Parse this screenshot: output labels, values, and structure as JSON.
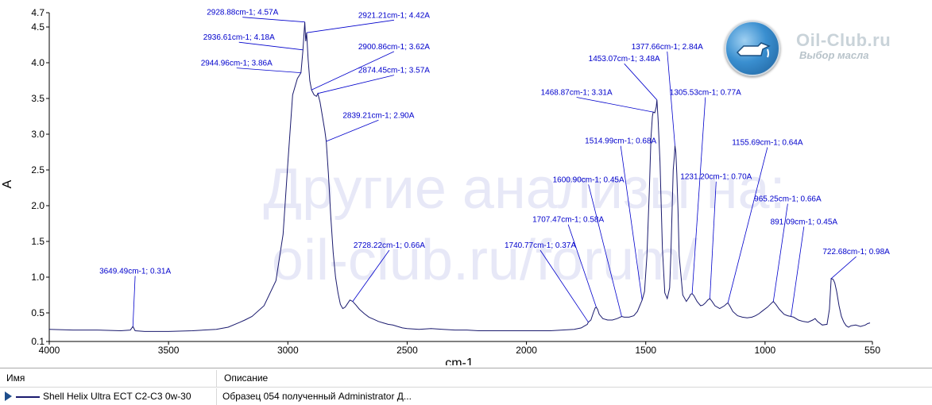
{
  "watermark": {
    "line1": "Другие анализы на:",
    "line2": "oil-club.ru/forum/"
  },
  "logo": {
    "name": "Oil-Club.ru",
    "subtitle": "Выбор масла",
    "icon": "oil-can-icon"
  },
  "table": {
    "headers": {
      "name": "Имя",
      "description": "Описание"
    },
    "rows": [
      {
        "name": "Shell Helix Ultra ECT C2-C3 0w-30",
        "description": "Образец 054 полученный Administrator Д...",
        "icon": "arrow-right-icon"
      }
    ]
  },
  "colors": {
    "spectrum": "#1a1a6e",
    "peak_label": "#0000cc",
    "watermark": "#e7e8f7",
    "axis": "#000000"
  },
  "chart_data": {
    "type": "line",
    "xlabel": "cm-1",
    "ylabel": "A",
    "xlim": [
      4000,
      550
    ],
    "x_reversed": true,
    "ylim": [
      0.1,
      4.7
    ],
    "x_ticks": [
      4000,
      3500,
      3000,
      2500,
      2000,
      1500,
      1000,
      550
    ],
    "y_ticks": [
      0.1,
      0.5,
      1.0,
      1.5,
      2.0,
      2.5,
      3.0,
      3.5,
      4.0,
      4.5,
      4.7
    ],
    "y_tick_labels": [
      "0.1",
      "0.5",
      "1.0",
      "1.5",
      "2.0",
      "2.5",
      "3.0",
      "3.5",
      "4.0",
      "4.5",
      "4.7"
    ],
    "grid": false,
    "series": [
      {
        "name": "Shell Helix Ultra ECT C2-C3 0w-30",
        "x": [
          4000,
          3900,
          3800,
          3700,
          3660,
          3649.49,
          3640,
          3600,
          3500,
          3400,
          3300,
          3250,
          3200,
          3180,
          3150,
          3100,
          3050,
          3020,
          3000,
          2980,
          2960,
          2944.96,
          2936.61,
          2928.88,
          2925,
          2921.21,
          2915,
          2908,
          2900.86,
          2890,
          2880,
          2874.45,
          2865,
          2855,
          2845,
          2839.21,
          2830,
          2820,
          2810,
          2800,
          2790,
          2780,
          2770,
          2760,
          2750,
          2740,
          2728.22,
          2715,
          2700,
          2680,
          2660,
          2640,
          2620,
          2600,
          2580,
          2560,
          2540,
          2520,
          2500,
          2450,
          2400,
          2350,
          2300,
          2250,
          2200,
          2150,
          2100,
          2050,
          2000,
          1950,
          1900,
          1850,
          1800,
          1770,
          1760,
          1750,
          1745,
          1740.77,
          1730,
          1720,
          1712,
          1707.47,
          1702,
          1695,
          1680,
          1660,
          1640,
          1620,
          1600.9,
          1590,
          1570,
          1550,
          1535,
          1525,
          1514.99,
          1505,
          1495,
          1485,
          1478,
          1472,
          1468.87,
          1462,
          1456,
          1453.07,
          1448,
          1440,
          1430,
          1420,
          1410,
          1400,
          1395,
          1390,
          1385,
          1380,
          1377.66,
          1374,
          1370,
          1365,
          1360,
          1345,
          1330,
          1318,
          1312,
          1305.53,
          1298,
          1285,
          1270,
          1260,
          1250,
          1240,
          1231.2,
          1222,
          1210,
          1190,
          1170,
          1160,
          1155.69,
          1148,
          1135,
          1115,
          1095,
          1075,
          1055,
          1040,
          1025,
          1010,
          990,
          975,
          965.25,
          955,
          940,
          920,
          905,
          891.09,
          880,
          860,
          840,
          820,
          800,
          790,
          780,
          760,
          740,
          730,
          722.68,
          715,
          708,
          700,
          690,
          680,
          670,
          660,
          650,
          640,
          620,
          600,
          580,
          570,
          560
        ],
        "y": [
          0.27,
          0.26,
          0.26,
          0.25,
          0.26,
          0.31,
          0.25,
          0.24,
          0.24,
          0.25,
          0.27,
          0.3,
          0.37,
          0.4,
          0.45,
          0.6,
          0.95,
          1.6,
          2.6,
          3.55,
          3.78,
          3.86,
          4.18,
          4.57,
          4.3,
          4.42,
          4.05,
          3.75,
          3.62,
          3.55,
          3.53,
          3.57,
          3.45,
          3.25,
          3.05,
          2.9,
          2.45,
          1.85,
          1.35,
          1.0,
          0.78,
          0.62,
          0.56,
          0.58,
          0.63,
          0.68,
          0.66,
          0.61,
          0.55,
          0.49,
          0.44,
          0.41,
          0.38,
          0.36,
          0.34,
          0.33,
          0.31,
          0.29,
          0.28,
          0.27,
          0.28,
          0.27,
          0.26,
          0.26,
          0.25,
          0.25,
          0.25,
          0.25,
          0.25,
          0.25,
          0.25,
          0.26,
          0.27,
          0.29,
          0.31,
          0.33,
          0.34,
          0.37,
          0.4,
          0.5,
          0.57,
          0.58,
          0.55,
          0.48,
          0.42,
          0.4,
          0.4,
          0.42,
          0.45,
          0.44,
          0.44,
          0.46,
          0.52,
          0.6,
          0.68,
          0.8,
          1.3,
          2.2,
          2.95,
          3.25,
          3.31,
          3.3,
          3.38,
          3.48,
          3.2,
          2.6,
          1.4,
          0.78,
          0.7,
          0.85,
          1.3,
          1.9,
          2.5,
          2.7,
          2.84,
          2.75,
          2.45,
          1.95,
          1.3,
          0.75,
          0.66,
          0.72,
          0.76,
          0.77,
          0.74,
          0.66,
          0.6,
          0.61,
          0.64,
          0.68,
          0.7,
          0.66,
          0.6,
          0.56,
          0.6,
          0.63,
          0.64,
          0.6,
          0.52,
          0.46,
          0.44,
          0.43,
          0.44,
          0.46,
          0.49,
          0.53,
          0.58,
          0.63,
          0.66,
          0.62,
          0.55,
          0.48,
          0.46,
          0.45,
          0.44,
          0.4,
          0.38,
          0.37,
          0.4,
          0.42,
          0.38,
          0.33,
          0.34,
          0.55,
          0.98,
          0.97,
          0.92,
          0.8,
          0.6,
          0.45,
          0.37,
          0.32,
          0.3,
          0.32,
          0.33,
          0.31,
          0.33,
          0.35,
          0.36
        ]
      }
    ],
    "annotations": [
      {
        "text": "2928.88cm-1; 4.57A",
        "x": 2928.88,
        "y": 4.57,
        "label_x": 3190,
        "label_y": 4.67
      },
      {
        "text": "2921.21cm-1; 4.42A",
        "x": 2921.21,
        "y": 4.42,
        "label_x": 2555,
        "label_y": 4.63
      },
      {
        "text": "2936.61cm-1; 4.18A",
        "x": 2936.61,
        "y": 4.18,
        "label_x": 3205,
        "label_y": 4.32
      },
      {
        "text": "2944.96cm-1; 3.86A",
        "x": 2944.96,
        "y": 3.86,
        "label_x": 3215,
        "label_y": 3.96
      },
      {
        "text": "2900.86cm-1; 3.62A",
        "x": 2900.86,
        "y": 3.62,
        "label_x": 2555,
        "label_y": 4.19
      },
      {
        "text": "2874.45cm-1; 3.57A",
        "x": 2874.45,
        "y": 3.57,
        "label_x": 2555,
        "label_y": 3.86
      },
      {
        "text": "2839.21cm-1; 2.90A",
        "x": 2839.21,
        "y": 2.9,
        "label_x": 2620,
        "label_y": 3.23
      },
      {
        "text": "2728.22cm-1; 0.66A",
        "x": 2728.22,
        "y": 0.66,
        "label_x": 2575,
        "label_y": 1.41
      },
      {
        "text": "3649.49cm-1; 0.31A",
        "x": 3649.49,
        "y": 0.31,
        "label_x": 3640,
        "label_y": 1.05
      },
      {
        "text": "1740.77cm-1; 0.37A",
        "x": 1740.77,
        "y": 0.37,
        "label_x": 1942,
        "label_y": 1.41
      },
      {
        "text": "1707.47cm-1; 0.58A",
        "x": 1707.47,
        "y": 0.58,
        "label_x": 1825,
        "label_y": 1.77
      },
      {
        "text": "1600.90cm-1; 0.45A",
        "x": 1600.9,
        "y": 0.45,
        "label_x": 1740,
        "label_y": 2.33
      },
      {
        "text": "1514.99cm-1; 0.68A",
        "x": 1514.99,
        "y": 0.68,
        "label_x": 1605,
        "label_y": 2.87
      },
      {
        "text": "1468.87cm-1; 3.31A",
        "x": 1468.87,
        "y": 3.31,
        "label_x": 1790,
        "label_y": 3.55
      },
      {
        "text": "1453.07cm-1; 3.48A",
        "x": 1453.07,
        "y": 3.48,
        "label_x": 1590,
        "label_y": 4.02
      },
      {
        "text": "1377.66cm-1; 2.84A",
        "x": 1377.66,
        "y": 2.84,
        "label_x": 1410,
        "label_y": 4.19
      },
      {
        "text": "1305.53cm-1; 0.77A",
        "x": 1305.53,
        "y": 0.77,
        "label_x": 1250,
        "label_y": 3.55
      },
      {
        "text": "1231.20cm-1; 0.70A",
        "x": 1231.2,
        "y": 0.7,
        "label_x": 1205,
        "label_y": 2.37
      },
      {
        "text": "1155.69cm-1; 0.64A",
        "x": 1155.69,
        "y": 0.64,
        "label_x": 990,
        "label_y": 2.85
      },
      {
        "text": "965.25cm-1; 0.66A",
        "x": 965.25,
        "y": 0.66,
        "label_x": 905,
        "label_y": 2.06
      },
      {
        "text": "891.09cm-1; 0.45A",
        "x": 891.09,
        "y": 0.45,
        "label_x": 837,
        "label_y": 1.74
      },
      {
        "text": "722.68cm-1; 0.98A",
        "x": 722.68,
        "y": 0.98,
        "label_x": 618,
        "label_y": 1.32
      }
    ]
  }
}
